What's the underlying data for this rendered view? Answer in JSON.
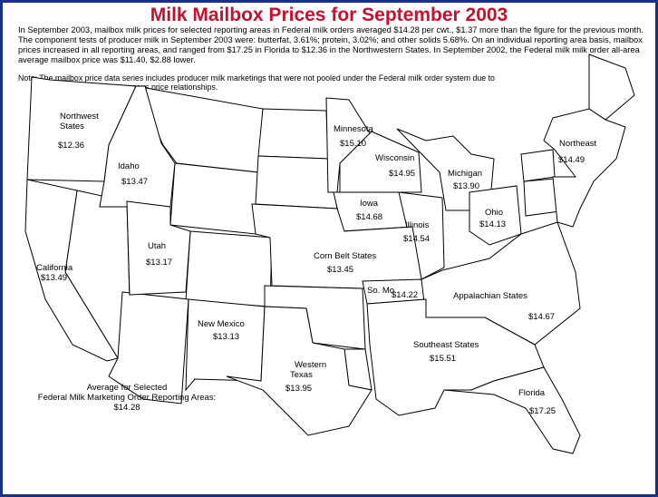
{
  "title": "Milk Mailbox Prices for September 2003",
  "intro": "In September 2003, mailbox milk prices for selected reporting areas in Federal milk orders averaged $14.28 per cwt., $1.37 more than the figure for the previous month.  The component tests of producer milk in September 2003 were: butterfat, 3.61%; protein, 3.02%; and other solids 5.68%. On an individual reporting area basis, mailbox prices increased in all reporting areas, and ranged from $17.25 in Florida to $12.36 in the Northwestern States.  In September 2002, the Federal milk milk order all-area average mailbox price was $11.40, $2.88 lower.",
  "note_line1": "Note: The mailbox price data series includes producer milk marketings that were not pooled under the Federal milk order system due to",
  "note_line2": "disadvantageous price relationships.",
  "average": {
    "line1": "Average for Selected",
    "line2": "Federal Milk Marketing Order Reporting Areas:",
    "value": "$14.28"
  },
  "regions": [
    {
      "name": "Northwest",
      "name2": "States",
      "price": "$12.36",
      "color": "#3aa86b"
    },
    {
      "name": "Idaho",
      "price": "$13.47",
      "color": "#b98b7a"
    },
    {
      "name": "California",
      "price": "$13.49",
      "color": "#ff7f00"
    },
    {
      "name": "Utah",
      "price": "$13.17",
      "color": "#ff80c8"
    },
    {
      "name": "New Mexico",
      "price": "$13.13",
      "color": "#9390c8"
    },
    {
      "name": "Western",
      "name2": "Texas",
      "price": "$13.95",
      "color": "#a88a00"
    },
    {
      "name": "Minnesota",
      "price": "$15.10",
      "color": "#a33f9c"
    },
    {
      "name": "Wisconsin",
      "price": "$14.95",
      "color": "#5a7ec2"
    },
    {
      "name": "Iowa",
      "price": "$14.68",
      "color": "#0a7a5c"
    },
    {
      "name": "Illinois",
      "price": "$14.54",
      "color": "#9a6fc0"
    },
    {
      "name": "Michigan",
      "price": "$13.90",
      "color": "#ddcbc0"
    },
    {
      "name": "Ohio",
      "price": "$14.13",
      "color": "#c6e021"
    },
    {
      "name": "Corn Belt States",
      "price": "$13.45",
      "color": "#ffff00"
    },
    {
      "name": "So. Mo.",
      "price": "$14.22",
      "color": "#e60000"
    },
    {
      "name": "Appalachian States",
      "price": "$14.67",
      "color": "#2ea0d8"
    },
    {
      "name": "Southeast States",
      "price": "$15.51",
      "color": "#f87060"
    },
    {
      "name": "Florida",
      "price": "$17.25",
      "color": "#dff0dc"
    },
    {
      "name": "Northeast",
      "price": "$14.49",
      "color": "#aaa2aa"
    }
  ]
}
